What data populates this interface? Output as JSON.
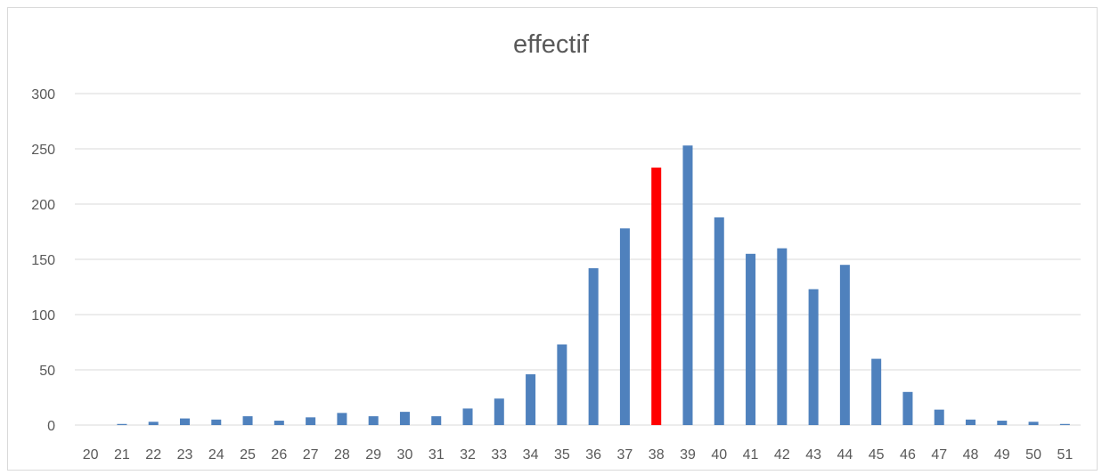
{
  "chart_data": {
    "type": "bar",
    "title": "effectif",
    "xlabel": "",
    "ylabel": "",
    "ylim": [
      0,
      300
    ],
    "yticks": [
      0,
      50,
      100,
      150,
      200,
      250,
      300
    ],
    "grid": true,
    "legend": "none",
    "categories": [
      "20",
      "21",
      "22",
      "23",
      "24",
      "25",
      "26",
      "27",
      "28",
      "29",
      "30",
      "31",
      "32",
      "33",
      "34",
      "35",
      "36",
      "37",
      "38",
      "39",
      "40",
      "41",
      "42",
      "43",
      "44",
      "45",
      "46",
      "47",
      "48",
      "49",
      "50",
      "51"
    ],
    "series": [
      {
        "values": [
          0,
          1,
          3,
          6,
          5,
          8,
          4,
          7,
          11,
          8,
          12,
          8,
          15,
          24,
          46,
          73,
          142,
          178,
          233,
          253,
          188,
          155,
          160,
          123,
          145,
          60,
          30,
          14,
          5,
          4,
          3,
          1
        ]
      }
    ],
    "highlight_category": "38",
    "colors": {
      "bar": "#4f81bd",
      "highlight": "#ff0000",
      "grid": "#d9d9d9",
      "text": "#595959"
    }
  }
}
